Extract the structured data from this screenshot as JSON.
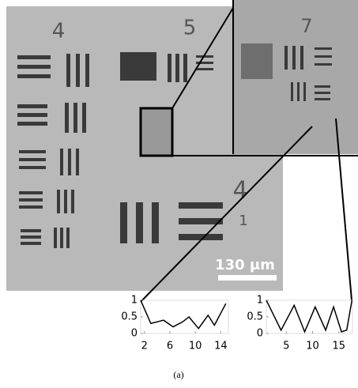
{
  "figure": {
    "target_labels": [
      "4",
      "5",
      "7",
      "4",
      "1"
    ],
    "scale_bar": "130 μm",
    "caption": "(a)"
  },
  "chart_data": [
    {
      "type": "line",
      "color": "#000000",
      "x": [
        1.4,
        3,
        5,
        6.5,
        8,
        9,
        10.5,
        12,
        13,
        14.8
      ],
      "values": [
        1,
        0.3,
        0.4,
        0.2,
        0.35,
        0.5,
        0.15,
        0.55,
        0.25,
        0.9
      ],
      "xlim": [
        1.4,
        15.2
      ],
      "ylim": [
        0,
        1
      ],
      "xticks": [
        2,
        6,
        10,
        14
      ],
      "yticks": [
        0,
        0.5,
        1
      ]
    },
    {
      "type": "line",
      "color": "#000000",
      "x": [
        1.2,
        4,
        6.5,
        8.5,
        10.5,
        12.5,
        14,
        15.5,
        16.5,
        17.5
      ],
      "values": [
        1,
        0.1,
        0.85,
        0.05,
        0.8,
        0.1,
        0.8,
        0.05,
        0.1,
        1
      ],
      "xlim": [
        1.2,
        17.6
      ],
      "ylim": [
        0,
        1
      ],
      "xticks": [
        5,
        10,
        15
      ],
      "yticks": [
        0,
        0.5,
        1
      ]
    }
  ]
}
